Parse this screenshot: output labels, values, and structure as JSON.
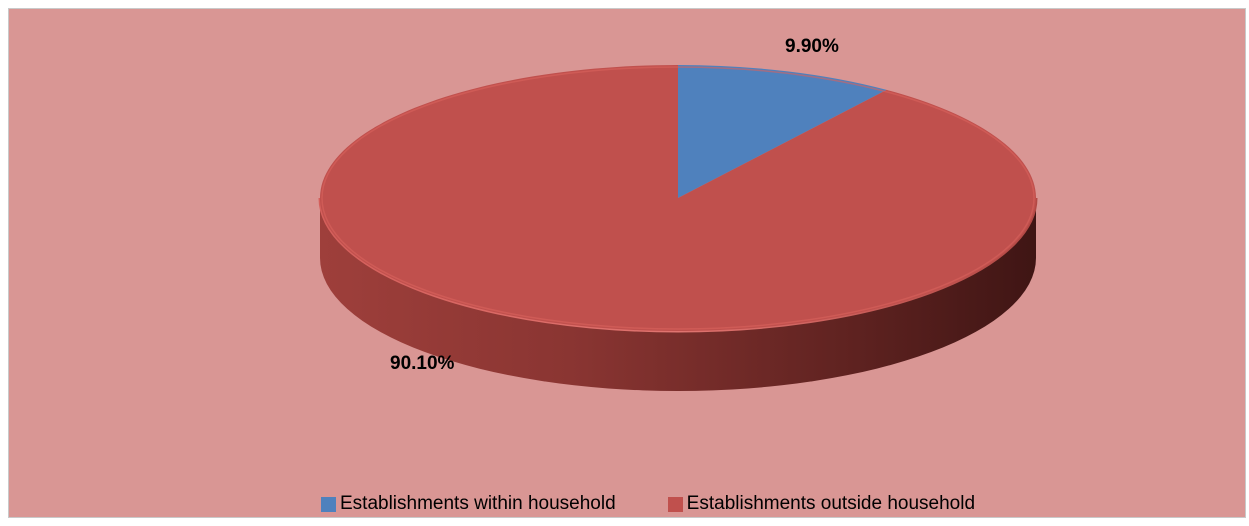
{
  "chart_data": {
    "type": "pie",
    "style": "3d",
    "labels": [
      "Establishments within household",
      "Establishments outside household"
    ],
    "values": [
      9.9,
      90.1
    ],
    "data_labels": [
      "9.90%",
      "90.10%"
    ],
    "colors": [
      "#4f81bd",
      "#c0504d"
    ],
    "start_angle_deg": 0,
    "legend_position": "bottom"
  },
  "background_color": "#d99694"
}
